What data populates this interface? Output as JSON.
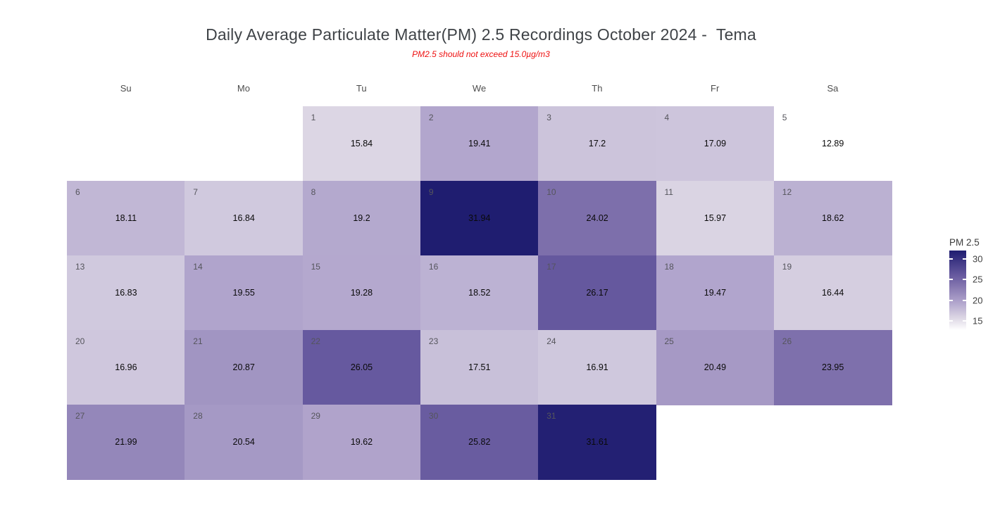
{
  "header": {
    "title": "Daily Average Particulate Matter(PM) 2.5 Recordings October 2024 -  Tema",
    "subtitle": "PM2.5 should not exceed 15.0µg/m3"
  },
  "chart_data": {
    "type": "heatmap",
    "title": "Daily Average Particulate Matter(PM) 2.5 Recordings October 2024 -  Tema",
    "subtitle": "PM2.5 should not exceed 15.0µg/m3",
    "threshold_note_value": 15.0,
    "weekdays": [
      "Su",
      "Mo",
      "Tu",
      "We",
      "Th",
      "Fr",
      "Sa"
    ],
    "legend": {
      "title": "PM 2.5",
      "ticks": [
        30,
        25,
        20,
        15
      ],
      "position": "right"
    },
    "scale": {
      "min": 12.89,
      "max": 31.94,
      "anchors": [
        {
          "value": 12.89,
          "color": "#ffffff"
        },
        {
          "value": 15.84,
          "color": "#dcd6e4"
        },
        {
          "value": 19.41,
          "color": "#b2a6cd"
        },
        {
          "value": 24.02,
          "color": "#7d6fab"
        },
        {
          "value": 26.17,
          "color": "#65589e"
        },
        {
          "value": 31.94,
          "color": "#1f1d70"
        }
      ]
    },
    "days": [
      {
        "day": 1,
        "row": 0,
        "col": 2,
        "value": 15.84
      },
      {
        "day": 2,
        "row": 0,
        "col": 3,
        "value": 19.41
      },
      {
        "day": 3,
        "row": 0,
        "col": 4,
        "value": 17.2
      },
      {
        "day": 4,
        "row": 0,
        "col": 5,
        "value": 17.09
      },
      {
        "day": 5,
        "row": 0,
        "col": 6,
        "value": 12.89
      },
      {
        "day": 6,
        "row": 1,
        "col": 0,
        "value": 18.11
      },
      {
        "day": 7,
        "row": 1,
        "col": 1,
        "value": 16.84
      },
      {
        "day": 8,
        "row": 1,
        "col": 2,
        "value": 19.2
      },
      {
        "day": 9,
        "row": 1,
        "col": 3,
        "value": 31.94
      },
      {
        "day": 10,
        "row": 1,
        "col": 4,
        "value": 24.02
      },
      {
        "day": 11,
        "row": 1,
        "col": 5,
        "value": 15.97
      },
      {
        "day": 12,
        "row": 1,
        "col": 6,
        "value": 18.62
      },
      {
        "day": 13,
        "row": 2,
        "col": 0,
        "value": 16.83
      },
      {
        "day": 14,
        "row": 2,
        "col": 1,
        "value": 19.55
      },
      {
        "day": 15,
        "row": 2,
        "col": 2,
        "value": 19.28
      },
      {
        "day": 16,
        "row": 2,
        "col": 3,
        "value": 18.52
      },
      {
        "day": 17,
        "row": 2,
        "col": 4,
        "value": 26.17
      },
      {
        "day": 18,
        "row": 2,
        "col": 5,
        "value": 19.47
      },
      {
        "day": 19,
        "row": 2,
        "col": 6,
        "value": 16.44
      },
      {
        "day": 20,
        "row": 3,
        "col": 0,
        "value": 16.96
      },
      {
        "day": 21,
        "row": 3,
        "col": 1,
        "value": 20.87
      },
      {
        "day": 22,
        "row": 3,
        "col": 2,
        "value": 26.05
      },
      {
        "day": 23,
        "row": 3,
        "col": 3,
        "value": 17.51
      },
      {
        "day": 24,
        "row": 3,
        "col": 4,
        "value": 16.91
      },
      {
        "day": 25,
        "row": 3,
        "col": 5,
        "value": 20.49
      },
      {
        "day": 26,
        "row": 3,
        "col": 6,
        "value": 23.95
      },
      {
        "day": 27,
        "row": 4,
        "col": 0,
        "value": 21.99
      },
      {
        "day": 28,
        "row": 4,
        "col": 1,
        "value": 20.54
      },
      {
        "day": 29,
        "row": 4,
        "col": 2,
        "value": 19.62
      },
      {
        "day": 30,
        "row": 4,
        "col": 3,
        "value": 25.82
      },
      {
        "day": 31,
        "row": 4,
        "col": 4,
        "value": 31.61
      }
    ]
  }
}
